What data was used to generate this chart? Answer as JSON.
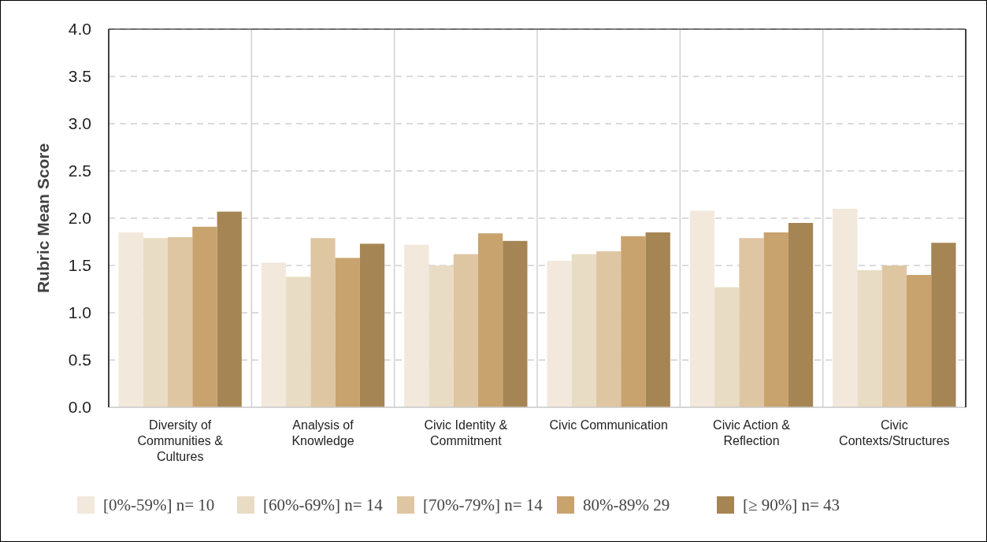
{
  "chart_data": {
    "type": "bar",
    "ylabel": "Rubric Mean Score",
    "categories": [
      "Diversity of Communities & Cultures",
      "Analysis of Knowledge",
      "Civic Identity & Commitment",
      "Civic Communication",
      "Civic Action & Reflection",
      "Civic Contexts/Structures"
    ],
    "series": [
      {
        "name": "[0%-59%] n= 10",
        "color": "#f2e8dc",
        "values": [
          1.85,
          1.53,
          1.72,
          1.55,
          2.08,
          2.1
        ]
      },
      {
        "name": "[60%-69%] n= 14",
        "color": "#e8dcc4",
        "values": [
          1.79,
          1.38,
          1.5,
          1.62,
          1.27,
          1.45
        ]
      },
      {
        "name": "[70%-79%] n= 14",
        "color": "#dfc6a3",
        "values": [
          1.8,
          1.79,
          1.62,
          1.65,
          1.79,
          1.5
        ]
      },
      {
        "name": "80%-89% 29",
        "color": "#c8a36e",
        "values": [
          1.91,
          1.58,
          1.84,
          1.81,
          1.85,
          1.4
        ]
      },
      {
        "name": "[≥ 90%] n= 43",
        "color": "#a68554",
        "values": [
          2.07,
          1.73,
          1.76,
          1.85,
          1.95,
          1.74
        ]
      }
    ],
    "ylim": [
      0,
      4
    ],
    "yticks": [
      {
        "value": 0,
        "label": "0.0"
      },
      {
        "value": 0.5,
        "label": "0.5"
      },
      {
        "value": 1,
        "label": "1.0"
      },
      {
        "value": 1.5,
        "label": "1.5"
      },
      {
        "value": 2,
        "label": "2.0"
      },
      {
        "value": 2.5,
        "label": "2.5"
      },
      {
        "value": 3,
        "label": "3.0"
      },
      {
        "value": 3.5,
        "label": "3.5"
      },
      {
        "value": 4,
        "label": "4.0"
      }
    ],
    "grid": true,
    "legend": "bottom"
  }
}
